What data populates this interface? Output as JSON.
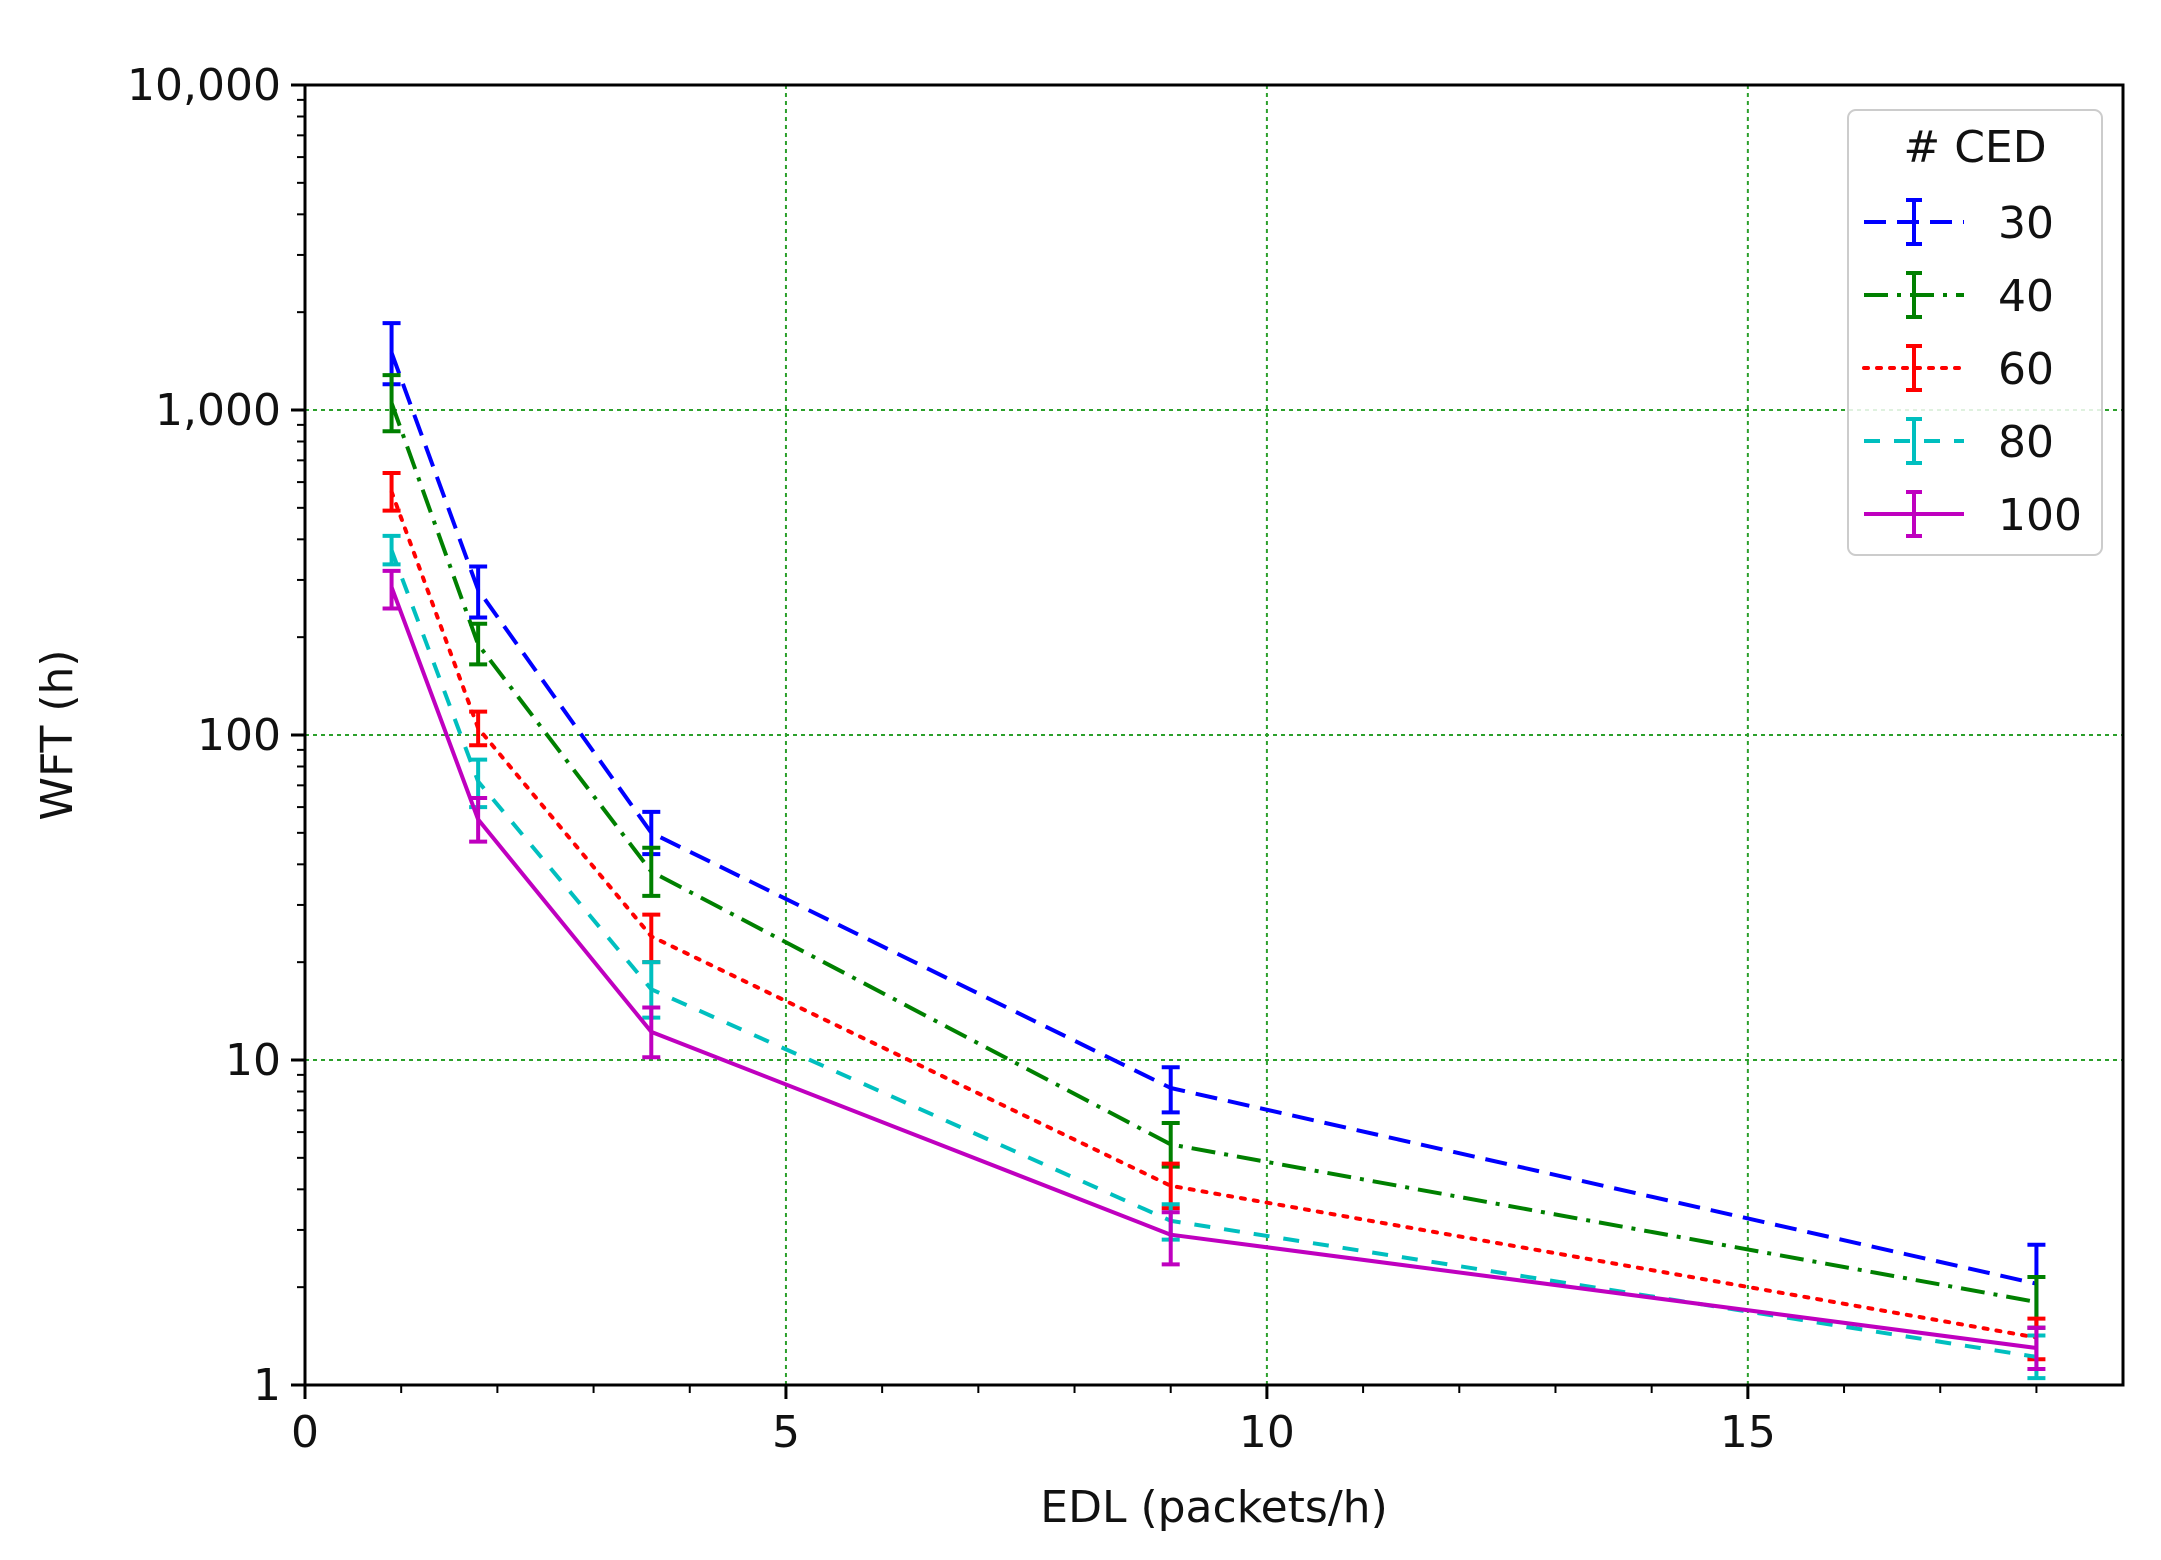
{
  "chart_data": {
    "type": "line",
    "xlabel": "EDL (packets/h)",
    "ylabel": "WFT (h)",
    "xlim": [
      0,
      18.9
    ],
    "ylim": [
      1,
      10000
    ],
    "y_scale": "log",
    "x_ticks": [
      0,
      5,
      10,
      15
    ],
    "x_tick_labels": [
      "0",
      "5",
      "10",
      "15"
    ],
    "y_ticks": [
      1,
      10,
      100,
      1000,
      10000
    ],
    "y_tick_labels": [
      "1",
      "10",
      "100",
      "1,000",
      "10,000"
    ],
    "grid": true,
    "grid_color": "#2ca02c",
    "legend": {
      "title": "# CED",
      "position": "top-right"
    },
    "x": [
      0.9,
      1.8,
      3.6,
      9,
      18
    ],
    "series": [
      {
        "name": "30",
        "color": "#0000ff",
        "style": "dashed",
        "values": [
          1500,
          280,
          50,
          8.2,
          2.05
        ],
        "err_low": [
          1200,
          230,
          43,
          6.9,
          1.5
        ],
        "err_high": [
          1850,
          330,
          58,
          9.5,
          2.7
        ]
      },
      {
        "name": "40",
        "color": "#008000",
        "style": "dashdot",
        "values": [
          1050,
          190,
          38,
          5.5,
          1.8
        ],
        "err_low": [
          860,
          165,
          32,
          4.7,
          1.5
        ],
        "err_high": [
          1280,
          220,
          45,
          6.4,
          2.15
        ]
      },
      {
        "name": "60",
        "color": "#ff0000",
        "style": "dotted",
        "values": [
          560,
          105,
          24,
          4.1,
          1.4
        ],
        "err_low": [
          490,
          93,
          20,
          3.5,
          1.2
        ],
        "err_high": [
          640,
          118,
          28,
          4.8,
          1.6
        ]
      },
      {
        "name": "80",
        "color": "#00bfbf",
        "style": "dashed-short",
        "values": [
          370,
          72,
          16.5,
          3.2,
          1.22
        ],
        "err_low": [
          335,
          60,
          13.5,
          2.8,
          1.05
        ],
        "err_high": [
          410,
          84,
          20,
          3.6,
          1.42
        ]
      },
      {
        "name": "100",
        "color": "#bf00bf",
        "style": "solid",
        "values": [
          285,
          55,
          12.2,
          2.9,
          1.3
        ],
        "err_low": [
          245,
          47,
          10.2,
          2.35,
          1.12
        ],
        "err_high": [
          320,
          64,
          14.5,
          3.4,
          1.5
        ]
      }
    ]
  }
}
